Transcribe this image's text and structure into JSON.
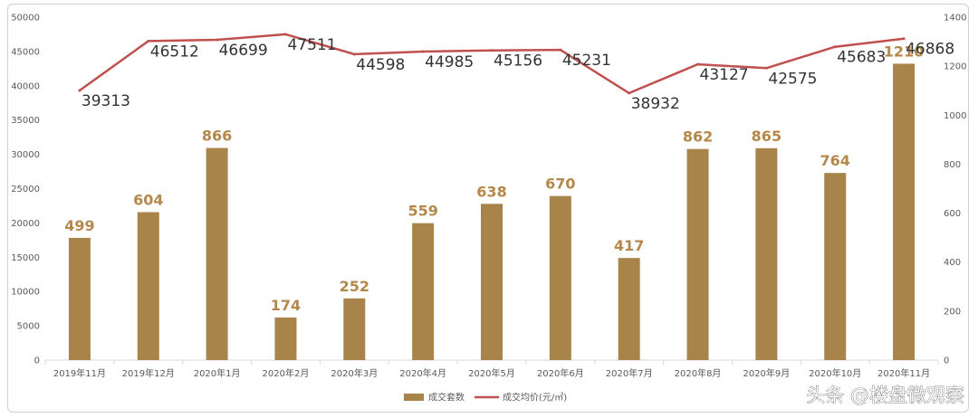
{
  "chart_data": {
    "type": "bar",
    "categories": [
      "2019年11月",
      "2019年12月",
      "2020年1月",
      "2020年2月",
      "2020年3月",
      "2020年4月",
      "2020年5月",
      "2020年6月",
      "2020年7月",
      "2020年8月",
      "2020年9月",
      "2020年10月",
      "2020年11月"
    ],
    "series": [
      {
        "name": "成交套数",
        "type": "bar",
        "axis": "right",
        "color": "#a9844a",
        "values": [
          499,
          604,
          866,
          174,
          252,
          559,
          638,
          670,
          417,
          862,
          865,
          764,
          1210
        ],
        "labels": [
          "499",
          "604",
          "866",
          "174",
          "252",
          "559",
          "638",
          "670",
          "417",
          "862",
          "865",
          "764",
          "1210"
        ]
      },
      {
        "name": "成交均价(元/㎡)",
        "type": "line",
        "axis": "left",
        "color": "#c0504d",
        "values": [
          39313,
          46512,
          46699,
          47511,
          44598,
          44985,
          45156,
          45231,
          38932,
          43127,
          42575,
          45683,
          46868
        ],
        "labels": [
          "39313",
          "46512",
          "46699",
          "47511",
          "44598",
          "44985",
          "45156",
          "45231",
          "38932",
          "43127",
          "42575",
          "45683",
          "46868"
        ]
      }
    ],
    "y_left": {
      "min": 0,
      "max": 50000,
      "ticks": [
        "0",
        "5000",
        "10000",
        "15000",
        "20000",
        "25000",
        "30000",
        "35000",
        "40000",
        "45000",
        "50000"
      ]
    },
    "y_right": {
      "min": 0,
      "max": 1400,
      "ticks": [
        "0",
        "200",
        "400",
        "600",
        "800",
        "1000",
        "1200",
        "1400"
      ]
    },
    "title": "",
    "xlabel": "",
    "ylabel": "",
    "grid": false,
    "legend_position": "bottom"
  },
  "watermark": "头条 @楼盘微观察"
}
